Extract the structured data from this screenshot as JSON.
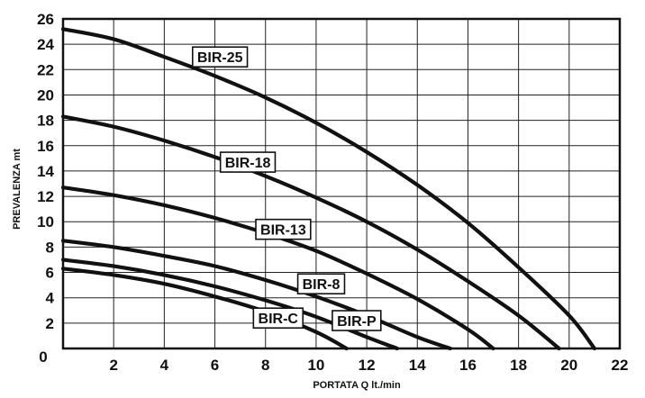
{
  "chart_data": {
    "type": "line",
    "title": "",
    "xlabel": "PORTATA Q   lt./min",
    "ylabel": "PREVALENZA  mt",
    "xlim": [
      0,
      22
    ],
    "ylim": [
      0,
      26
    ],
    "x_ticks": [
      0,
      2,
      4,
      6,
      8,
      10,
      12,
      14,
      16,
      18,
      20,
      22
    ],
    "y_ticks": [
      0,
      2,
      4,
      6,
      8,
      10,
      12,
      14,
      16,
      18,
      20,
      22,
      24,
      26
    ],
    "tick_labels_x": [
      "0",
      "2",
      "4",
      "6",
      "8",
      "10",
      "12",
      "14",
      "16",
      "18",
      "20",
      "22"
    ],
    "tick_labels_y": [
      "0",
      "2",
      "4",
      "6",
      "8",
      "10",
      "12",
      "14",
      "16",
      "18",
      "20",
      "22",
      "24",
      "26"
    ],
    "grid": true,
    "legend": "inline labels on curves",
    "series": [
      {
        "name": "BIR-25",
        "x": [
          0,
          2,
          4,
          6,
          8,
          10,
          12,
          14,
          16,
          18,
          20,
          21
        ],
        "y": [
          25.2,
          24.4,
          23.0,
          21.5,
          19.8,
          17.8,
          15.5,
          12.9,
          9.9,
          6.4,
          2.6,
          0
        ],
        "label_at": [
          6.2,
          23.0
        ]
      },
      {
        "name": "BIR-18",
        "x": [
          0,
          2,
          4,
          6,
          8,
          10,
          12,
          14,
          16,
          18,
          19.6
        ],
        "y": [
          18.3,
          17.5,
          16.4,
          15.1,
          13.6,
          11.9,
          10.0,
          7.8,
          5.3,
          2.6,
          0
        ],
        "label_at": [
          7.3,
          14.7
        ]
      },
      {
        "name": "BIR-13",
        "x": [
          0,
          2,
          4,
          6,
          8,
          10,
          12,
          14,
          16,
          17.0
        ],
        "y": [
          12.7,
          12.1,
          11.3,
          10.3,
          9.1,
          7.7,
          5.9,
          3.9,
          1.5,
          0
        ],
        "label_at": [
          8.7,
          9.4
        ]
      },
      {
        "name": "BIR-8",
        "x": [
          0,
          2,
          4,
          6,
          8,
          10,
          12,
          14,
          15.3
        ],
        "y": [
          8.5,
          8.0,
          7.3,
          6.5,
          5.4,
          4.1,
          2.6,
          0.9,
          0
        ],
        "label_at": [
          10.2,
          5.1
        ]
      },
      {
        "name": "BIR-P",
        "x": [
          0,
          2,
          4,
          6,
          8,
          10,
          12,
          13.2
        ],
        "y": [
          7.0,
          6.5,
          5.8,
          4.9,
          3.8,
          2.5,
          0.9,
          0
        ],
        "label_at": [
          11.6,
          2.2
        ]
      },
      {
        "name": "BIR-C",
        "x": [
          0,
          2,
          4,
          6,
          8,
          10,
          11.2
        ],
        "y": [
          6.3,
          5.8,
          5.1,
          4.1,
          2.9,
          1.3,
          0
        ],
        "label_at": [
          8.5,
          2.4
        ]
      }
    ]
  }
}
